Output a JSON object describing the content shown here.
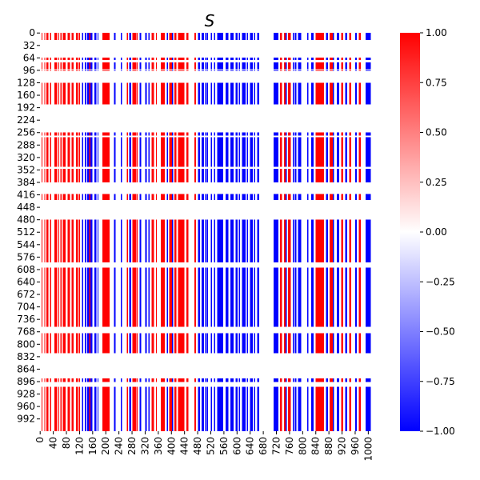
{
  "chart_data": {
    "type": "heatmap",
    "title": "S",
    "xlabel": "",
    "ylabel": "",
    "n": 1024,
    "value_range": [
      -1,
      1
    ],
    "x_tick_labels": [
      "0",
      "40",
      "80",
      "120",
      "160",
      "200",
      "240",
      "280",
      "320",
      "360",
      "400",
      "440",
      "480",
      "520",
      "560",
      "600",
      "640",
      "680",
      "720",
      "760",
      "800",
      "840",
      "880",
      "920",
      "960",
      "1000"
    ],
    "y_tick_labels": [
      "0",
      "32",
      "64",
      "96",
      "128",
      "160",
      "192",
      "224",
      "256",
      "288",
      "320",
      "352",
      "384",
      "416",
      "448",
      "480",
      "512",
      "544",
      "576",
      "608",
      "640",
      "672",
      "704",
      "736",
      "768",
      "800",
      "832",
      "864",
      "896",
      "928",
      "960",
      "992"
    ],
    "colorbar": {
      "ticks": [
        "1.00",
        "0.75",
        "0.50",
        "0.25",
        "0.00",
        "−0.25",
        "−0.50",
        "−0.75",
        "−1.00"
      ],
      "colormap": [
        "#0000ff",
        "#ffffff",
        "#ff0000"
      ]
    },
    "column_pattern": [
      {
        "from": 0,
        "to": 5,
        "value": 0
      },
      {
        "from": 5,
        "to": 7,
        "value": 1
      },
      {
        "from": 7,
        "to": 14,
        "value": 0
      },
      {
        "from": 14,
        "to": 16,
        "value": 1
      },
      {
        "from": 16,
        "to": 20,
        "value": 0
      },
      {
        "from": 20,
        "to": 26,
        "value": 1
      },
      {
        "from": 26,
        "to": 30,
        "value": 0
      },
      {
        "from": 30,
        "to": 34,
        "value": 1
      },
      {
        "from": 34,
        "to": 44,
        "value": 0
      },
      {
        "from": 44,
        "to": 52,
        "value": 1
      },
      {
        "from": 52,
        "to": 56,
        "value": 0
      },
      {
        "from": 56,
        "to": 58,
        "value": 1
      },
      {
        "from": 58,
        "to": 62,
        "value": 0
      },
      {
        "from": 62,
        "to": 66,
        "value": 1
      },
      {
        "from": 66,
        "to": 70,
        "value": 0
      },
      {
        "from": 70,
        "to": 78,
        "value": 1
      },
      {
        "from": 78,
        "to": 84,
        "value": 0
      },
      {
        "from": 84,
        "to": 92,
        "value": 1
      },
      {
        "from": 92,
        "to": 96,
        "value": 0
      },
      {
        "from": 96,
        "to": 102,
        "value": 1
      },
      {
        "from": 102,
        "to": 110,
        "value": 0
      },
      {
        "from": 110,
        "to": 116,
        "value": 1
      },
      {
        "from": 116,
        "to": 118,
        "value": 0
      },
      {
        "from": 118,
        "to": 122,
        "value": 1
      },
      {
        "from": 122,
        "to": 128,
        "value": 0
      },
      {
        "from": 128,
        "to": 132,
        "value": -1
      },
      {
        "from": 132,
        "to": 136,
        "value": 0
      },
      {
        "from": 136,
        "to": 142,
        "value": -1
      },
      {
        "from": 142,
        "to": 144,
        "value": 0
      },
      {
        "from": 144,
        "to": 150,
        "value": -1
      },
      {
        "from": 150,
        "to": 154,
        "value": 1
      },
      {
        "from": 154,
        "to": 160,
        "value": -1
      },
      {
        "from": 160,
        "to": 166,
        "value": 0
      },
      {
        "from": 166,
        "to": 172,
        "value": -1
      },
      {
        "from": 172,
        "to": 176,
        "value": 0
      },
      {
        "from": 176,
        "to": 178,
        "value": -1
      },
      {
        "from": 178,
        "to": 190,
        "value": 0
      },
      {
        "from": 190,
        "to": 212,
        "value": 1
      },
      {
        "from": 212,
        "to": 226,
        "value": 0
      },
      {
        "from": 226,
        "to": 230,
        "value": -1
      },
      {
        "from": 230,
        "to": 246,
        "value": 0
      },
      {
        "from": 246,
        "to": 250,
        "value": -1
      },
      {
        "from": 250,
        "to": 264,
        "value": 0
      },
      {
        "from": 264,
        "to": 268,
        "value": 1
      },
      {
        "from": 268,
        "to": 272,
        "value": 0
      },
      {
        "from": 272,
        "to": 278,
        "value": -1
      },
      {
        "from": 278,
        "to": 282,
        "value": 0
      },
      {
        "from": 282,
        "to": 292,
        "value": 1
      },
      {
        "from": 292,
        "to": 294,
        "value": 0
      },
      {
        "from": 294,
        "to": 298,
        "value": 1
      },
      {
        "from": 298,
        "to": 304,
        "value": 0
      },
      {
        "from": 304,
        "to": 308,
        "value": -1
      },
      {
        "from": 308,
        "to": 320,
        "value": 0
      },
      {
        "from": 320,
        "to": 326,
        "value": -1
      },
      {
        "from": 326,
        "to": 330,
        "value": 0
      },
      {
        "from": 330,
        "to": 334,
        "value": -1
      },
      {
        "from": 334,
        "to": 340,
        "value": 0
      },
      {
        "from": 340,
        "to": 348,
        "value": 1
      },
      {
        "from": 348,
        "to": 354,
        "value": 0
      },
      {
        "from": 354,
        "to": 356,
        "value": 1
      },
      {
        "from": 356,
        "to": 368,
        "value": 0
      },
      {
        "from": 368,
        "to": 380,
        "value": 1
      },
      {
        "from": 380,
        "to": 386,
        "value": 0
      },
      {
        "from": 386,
        "to": 390,
        "value": -1
      },
      {
        "from": 390,
        "to": 394,
        "value": 0
      },
      {
        "from": 394,
        "to": 402,
        "value": 1
      },
      {
        "from": 402,
        "to": 406,
        "value": -1
      },
      {
        "from": 406,
        "to": 410,
        "value": 0
      },
      {
        "from": 410,
        "to": 416,
        "value": 1
      },
      {
        "from": 416,
        "to": 420,
        "value": 0
      },
      {
        "from": 420,
        "to": 440,
        "value": 1
      },
      {
        "from": 440,
        "to": 446,
        "value": 0
      },
      {
        "from": 446,
        "to": 452,
        "value": 1
      },
      {
        "from": 452,
        "to": 470,
        "value": 0
      },
      {
        "from": 470,
        "to": 476,
        "value": 1
      },
      {
        "from": 476,
        "to": 482,
        "value": 0
      },
      {
        "from": 482,
        "to": 488,
        "value": -1
      },
      {
        "from": 488,
        "to": 492,
        "value": 0
      },
      {
        "from": 492,
        "to": 500,
        "value": -1
      },
      {
        "from": 500,
        "to": 504,
        "value": 0
      },
      {
        "from": 504,
        "to": 508,
        "value": -1
      },
      {
        "from": 508,
        "to": 510,
        "value": 0
      },
      {
        "from": 510,
        "to": 512,
        "value": -1
      },
      {
        "from": 512,
        "to": 520,
        "value": 0
      },
      {
        "from": 520,
        "to": 524,
        "value": -1
      },
      {
        "from": 524,
        "to": 530,
        "value": 0
      },
      {
        "from": 530,
        "to": 534,
        "value": -1
      },
      {
        "from": 534,
        "to": 540,
        "value": 0
      },
      {
        "from": 540,
        "to": 558,
        "value": -1
      },
      {
        "from": 558,
        "to": 566,
        "value": 0
      },
      {
        "from": 566,
        "to": 574,
        "value": -1
      },
      {
        "from": 574,
        "to": 580,
        "value": 0
      },
      {
        "from": 580,
        "to": 590,
        "value": -1
      },
      {
        "from": 590,
        "to": 596,
        "value": 0
      },
      {
        "from": 596,
        "to": 602,
        "value": -1
      },
      {
        "from": 602,
        "to": 606,
        "value": 0
      },
      {
        "from": 606,
        "to": 610,
        "value": -1
      },
      {
        "from": 610,
        "to": 616,
        "value": 0
      },
      {
        "from": 616,
        "to": 626,
        "value": -1
      },
      {
        "from": 626,
        "to": 630,
        "value": 0
      },
      {
        "from": 630,
        "to": 634,
        "value": -1
      },
      {
        "from": 634,
        "to": 640,
        "value": 0
      },
      {
        "from": 640,
        "to": 648,
        "value": -1
      },
      {
        "from": 648,
        "to": 652,
        "value": 0
      },
      {
        "from": 652,
        "to": 656,
        "value": -1
      },
      {
        "from": 656,
        "to": 662,
        "value": 0
      },
      {
        "from": 662,
        "to": 668,
        "value": -1
      },
      {
        "from": 668,
        "to": 712,
        "value": 0
      },
      {
        "from": 712,
        "to": 726,
        "value": -1
      },
      {
        "from": 726,
        "to": 732,
        "value": 0
      },
      {
        "from": 732,
        "to": 738,
        "value": 1
      },
      {
        "from": 738,
        "to": 744,
        "value": 0
      },
      {
        "from": 744,
        "to": 748,
        "value": 1
      },
      {
        "from": 748,
        "to": 752,
        "value": -1
      },
      {
        "from": 752,
        "to": 756,
        "value": 0
      },
      {
        "from": 756,
        "to": 764,
        "value": 1
      },
      {
        "from": 764,
        "to": 770,
        "value": 0
      },
      {
        "from": 770,
        "to": 774,
        "value": -1
      },
      {
        "from": 774,
        "to": 776,
        "value": 0
      },
      {
        "from": 776,
        "to": 782,
        "value": -1
      },
      {
        "from": 782,
        "to": 786,
        "value": 0
      },
      {
        "from": 786,
        "to": 796,
        "value": -1
      },
      {
        "from": 796,
        "to": 814,
        "value": 0
      },
      {
        "from": 814,
        "to": 818,
        "value": -1
      },
      {
        "from": 818,
        "to": 826,
        "value": 0
      },
      {
        "from": 826,
        "to": 834,
        "value": -1
      },
      {
        "from": 834,
        "to": 840,
        "value": 0
      },
      {
        "from": 840,
        "to": 866,
        "value": 1
      },
      {
        "from": 866,
        "to": 872,
        "value": 0
      },
      {
        "from": 872,
        "to": 878,
        "value": -1
      },
      {
        "from": 878,
        "to": 882,
        "value": 0
      },
      {
        "from": 882,
        "to": 892,
        "value": 1
      },
      {
        "from": 892,
        "to": 896,
        "value": -1
      },
      {
        "from": 896,
        "to": 904,
        "value": 0
      },
      {
        "from": 904,
        "to": 912,
        "value": -1
      },
      {
        "from": 912,
        "to": 918,
        "value": 0
      },
      {
        "from": 918,
        "to": 924,
        "value": 1
      },
      {
        "from": 924,
        "to": 930,
        "value": 0
      },
      {
        "from": 930,
        "to": 936,
        "value": -1
      },
      {
        "from": 936,
        "to": 942,
        "value": 0
      },
      {
        "from": 942,
        "to": 948,
        "value": 1
      },
      {
        "from": 948,
        "to": 960,
        "value": 0
      },
      {
        "from": 960,
        "to": 966,
        "value": -1
      },
      {
        "from": 966,
        "to": 972,
        "value": 0
      },
      {
        "from": 972,
        "to": 978,
        "value": 1
      },
      {
        "from": 978,
        "to": 992,
        "value": 0
      },
      {
        "from": 992,
        "to": 1008,
        "value": -1
      },
      {
        "from": 1008,
        "to": 1024,
        "value": 0
      }
    ],
    "active_rows": [
      {
        "from": 0,
        "to": 18
      },
      {
        "from": 64,
        "to": 70
      },
      {
        "from": 76,
        "to": 94
      },
      {
        "from": 96,
        "to": 98
      },
      {
        "from": 128,
        "to": 184
      },
      {
        "from": 256,
        "to": 264
      },
      {
        "from": 268,
        "to": 344
      },
      {
        "from": 350,
        "to": 384
      },
      {
        "from": 414,
        "to": 430
      },
      {
        "from": 480,
        "to": 590
      },
      {
        "from": 604,
        "to": 756
      },
      {
        "from": 772,
        "to": 824
      },
      {
        "from": 888,
        "to": 898
      },
      {
        "from": 910,
        "to": 1024
      }
    ]
  }
}
